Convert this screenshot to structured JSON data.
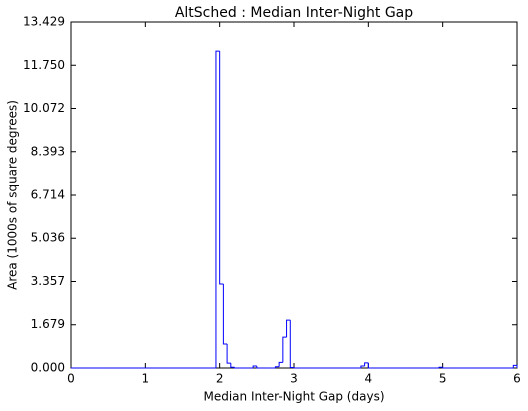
{
  "chart_data": {
    "type": "histogram",
    "title": "AltSched : Median Inter-Night Gap",
    "x_label": "Median Inter-Night Gap (days)",
    "y_label": "Area (1000s of square degrees)",
    "color": "#0000ff",
    "bins": [
      0,
      0.05,
      0.1,
      0.15,
      0.2,
      0.25,
      0.3,
      0.35,
      0.4,
      0.45,
      0.5,
      0.55,
      0.6,
      0.65,
      0.7,
      0.75,
      0.8,
      0.85,
      0.9,
      0.95,
      1,
      1.05,
      1.1,
      1.15,
      1.2,
      1.25,
      1.3,
      1.35,
      1.4,
      1.45,
      1.5,
      1.55,
      1.6,
      1.65,
      1.7,
      1.75,
      1.8,
      1.85,
      1.9,
      1.95,
      2,
      2.05,
      2.1,
      2.15,
      2.2,
      2.25,
      2.3,
      2.35,
      2.4,
      2.45,
      2.5,
      2.55,
      2.6,
      2.65,
      2.7,
      2.75,
      2.8,
      2.85,
      2.9,
      2.95,
      3,
      3.05,
      3.1,
      3.15,
      3.2,
      3.25,
      3.3,
      3.35,
      3.4,
      3.45,
      3.5,
      3.55,
      3.6,
      3.65,
      3.7,
      3.75,
      3.8,
      3.85,
      3.9,
      3.95,
      4,
      4.05,
      4.1,
      4.15,
      4.2,
      4.25,
      4.3,
      4.35,
      4.4,
      4.45,
      4.5,
      4.55,
      4.6,
      4.65,
      4.7,
      4.75,
      4.8,
      4.85,
      4.9,
      4.95,
      5,
      5.05,
      5.1,
      5.15,
      5.2,
      5.25,
      5.3,
      5.35,
      5.4,
      5.45,
      5.5,
      5.55,
      5.6,
      5.65,
      5.7,
      5.75,
      5.8,
      5.85,
      5.9,
      5.95,
      6
    ],
    "counts": [
      0,
      0,
      0,
      0,
      0,
      0,
      0,
      0,
      0,
      0,
      0,
      0,
      0,
      0,
      0,
      0,
      0,
      0,
      0,
      0,
      0,
      0,
      0,
      0,
      0,
      0,
      0,
      0,
      0,
      0,
      0,
      0,
      0,
      0,
      0,
      0,
      0,
      0,
      0,
      12.3,
      3.26,
      0.93,
      0.19,
      0.03,
      0,
      0,
      0,
      0,
      0,
      0.08,
      0,
      0,
      0,
      0,
      0,
      0.05,
      0.22,
      1.2,
      1.86,
      0.02,
      0,
      0,
      0,
      0,
      0,
      0,
      0,
      0,
      0,
      0,
      0,
      0,
      0,
      0,
      0,
      0,
      0,
      0,
      0.08,
      0.2,
      0,
      0,
      0,
      0,
      0,
      0,
      0,
      0,
      0,
      0,
      0,
      0,
      0,
      0,
      0,
      0,
      0,
      0,
      0,
      0.03,
      0,
      0,
      0,
      0,
      0,
      0,
      0,
      0,
      0,
      0,
      0,
      0,
      0,
      0,
      0,
      0,
      0,
      0,
      0,
      0.1
    ],
    "xlim": [
      0,
      6
    ],
    "xticks": [
      0,
      1,
      2,
      3,
      4,
      5,
      6
    ],
    "ylim": [
      0,
      13.429
    ],
    "yticks": [
      {
        "value": 0,
        "label": "0.000"
      },
      1.679,
      3.357,
      5.036,
      6.714,
      8.393,
      10.072,
      {
        "value": 11.75,
        "label": "11.750"
      },
      13.429
    ],
    "grid": false
  }
}
